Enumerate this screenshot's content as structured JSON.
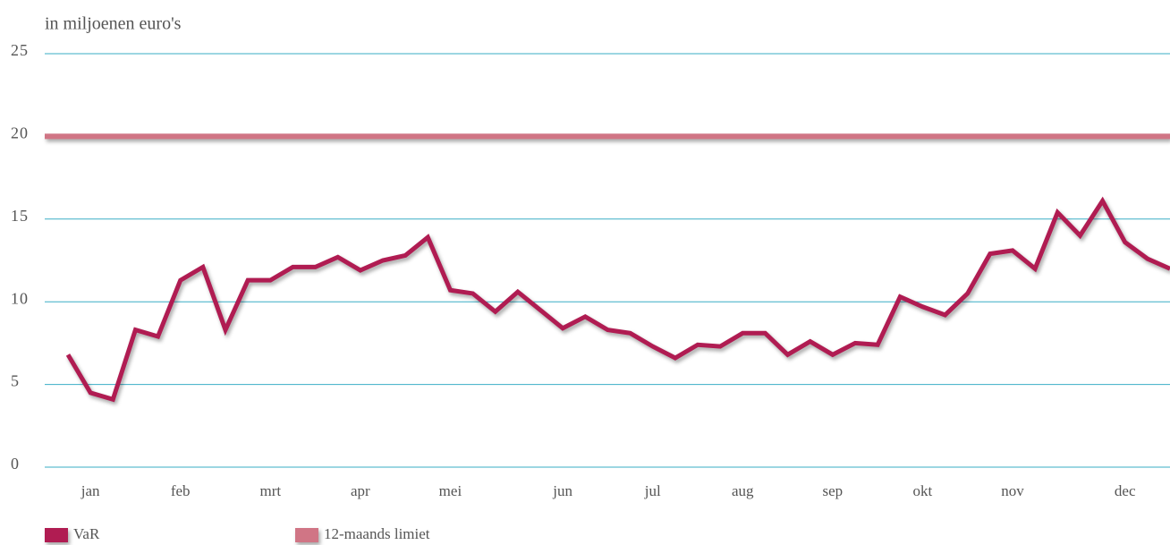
{
  "chart_data": {
    "type": "line",
    "y_label": "in miljoenen euro's",
    "categories": [
      null,
      "jan",
      null,
      null,
      null,
      "feb",
      null,
      null,
      null,
      "mrt",
      null,
      null,
      null,
      "apr",
      null,
      null,
      null,
      "mei",
      null,
      null,
      null,
      null,
      "jun",
      null,
      null,
      null,
      "jul",
      null,
      null,
      null,
      "aug",
      null,
      null,
      null,
      "sep",
      null,
      null,
      null,
      "okt",
      null,
      null,
      null,
      "nov",
      null,
      null,
      null,
      null,
      "dec",
      null,
      null
    ],
    "series": [
      {
        "name": "VaR",
        "color": "#b01c52",
        "values": [
          6.8,
          4.5,
          4.1,
          8.3,
          7.9,
          11.3,
          12.1,
          8.3,
          11.3,
          11.3,
          12.1,
          12.1,
          12.7,
          11.9,
          12.5,
          12.8,
          13.9,
          10.7,
          10.5,
          9.4,
          10.6,
          9.5,
          8.4,
          9.1,
          8.3,
          8.1,
          7.3,
          6.6,
          7.4,
          7.3,
          8.1,
          8.1,
          6.8,
          7.6,
          6.8,
          7.5,
          7.4,
          10.3,
          9.7,
          9.2,
          10.5,
          12.9,
          13.1,
          12.0,
          15.4,
          14.0,
          16.1,
          13.6,
          12.6,
          12.0
        ]
      }
    ],
    "limit": {
      "name": "12-maands limiet",
      "color": "#d07585",
      "value": 20
    },
    "ylim": [
      0,
      25
    ],
    "yticks": [
      0,
      5,
      10,
      15,
      20,
      25
    ],
    "grid": true,
    "grid_color": "#3aaec6",
    "legend": "bottom-left"
  }
}
